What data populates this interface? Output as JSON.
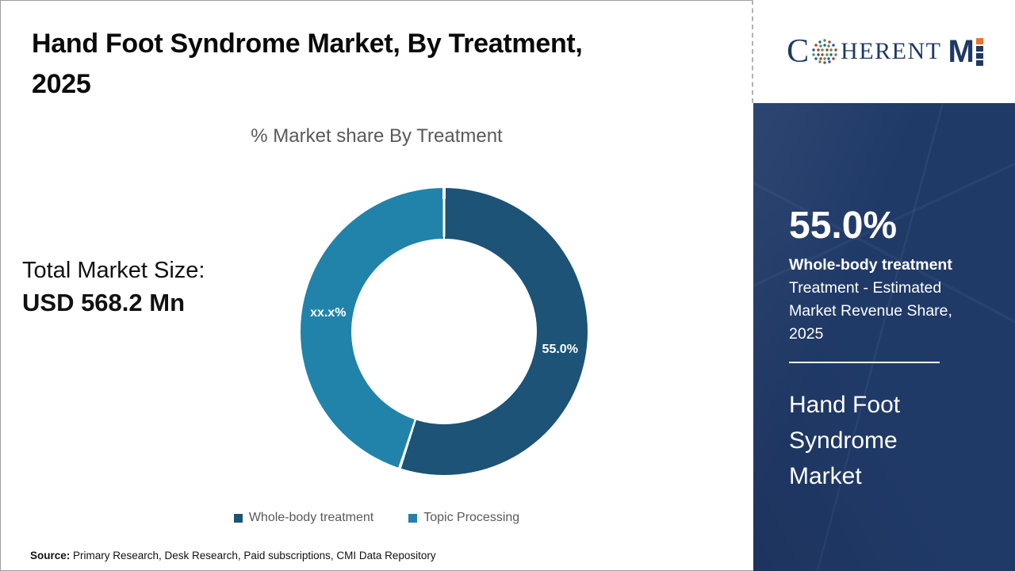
{
  "header": {
    "title_line1": "Hand Foot Syndrome Market, By Treatment,",
    "title_line2": "2025"
  },
  "logo": {
    "prefix": "C",
    "middle": "HERENT",
    "m": "M",
    "o_icon": "dot-globe-icon",
    "navy": "#1F3864",
    "orange": "#E8762C"
  },
  "main": {
    "total_label": "Total Market Size:",
    "total_value": "USD 568.2 Mn"
  },
  "chart_data": {
    "type": "pie",
    "donut": true,
    "title": "% Market share By Treatment",
    "categories": [
      "Whole-body treatment",
      "Topic Processing"
    ],
    "values": [
      55.0,
      45.0
    ],
    "value_labels": [
      "55.0%",
      "xx.x%"
    ],
    "colors": [
      "#1C5377",
      "#2183A9"
    ],
    "start_angle_deg": 0,
    "inner_ratio": 0.645,
    "label_radius_ratio": 0.818,
    "legend_position": "bottom",
    "slice_gap_deg": 0.6
  },
  "sidebar": {
    "stat_value": "55.0%",
    "stat_title": "Whole-body treatment",
    "stat_desc": "Treatment - Estimated Market Revenue Share, 2025",
    "market_name": "Hand Foot Syndrome Market",
    "bg_color": "#203A68"
  },
  "footer": {
    "source_label": "Source:",
    "source_text": " Primary Research, Desk Research, Paid subscriptions, CMI Data Repository"
  }
}
